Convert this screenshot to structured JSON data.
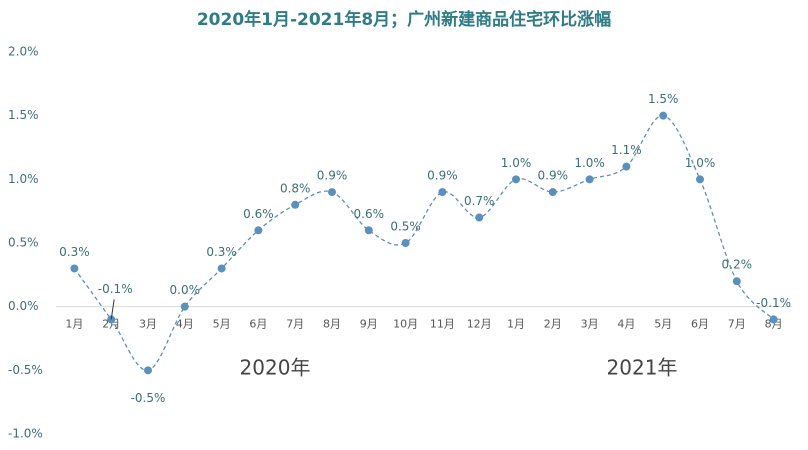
{
  "chart_data": {
    "type": "line",
    "title": "2020年1月-2021年8月；广州新建商品住宅环比涨幅",
    "categories": [
      "1月",
      "2月",
      "3月",
      "4月",
      "5月",
      "6月",
      "7月",
      "8月",
      "9月",
      "10月",
      "11月",
      "12月",
      "1月",
      "2月",
      "3月",
      "4月",
      "5月",
      "6月",
      "7月",
      "8月"
    ],
    "values": [
      0.3,
      -0.1,
      -0.5,
      0.0,
      0.3,
      0.6,
      0.8,
      0.9,
      0.6,
      0.5,
      0.9,
      0.7,
      1.0,
      0.9,
      1.0,
      1.1,
      1.5,
      1.0,
      0.2,
      -0.1
    ],
    "value_labels": [
      "0.3%",
      "-0.1%",
      "-0.5%",
      "0.0%",
      "0.3%",
      "0.6%",
      "0.8%",
      "0.9%",
      "0.6%",
      "0.5%",
      "0.9%",
      "0.7%",
      "1.0%",
      "0.9%",
      "1.0%",
      "1.1%",
      "1.5%",
      "1.0%",
      "0.2%",
      "-0.1%"
    ],
    "color": "#5b8fbd",
    "ylim": [
      -1.0,
      2.0
    ],
    "yticks": [
      {
        "value": -1.0,
        "label": "-1.0%"
      },
      {
        "value": -0.5,
        "label": "-0.5%"
      },
      {
        "value": 0.0,
        "label": "0.0%"
      },
      {
        "value": 0.5,
        "label": "0.5%"
      },
      {
        "value": 1.0,
        "label": "1.0%"
      },
      {
        "value": 1.5,
        "label": "1.5%"
      },
      {
        "value": 2.0,
        "label": "2.0%"
      }
    ],
    "annotations": [
      "2020年",
      "2021年"
    ]
  }
}
